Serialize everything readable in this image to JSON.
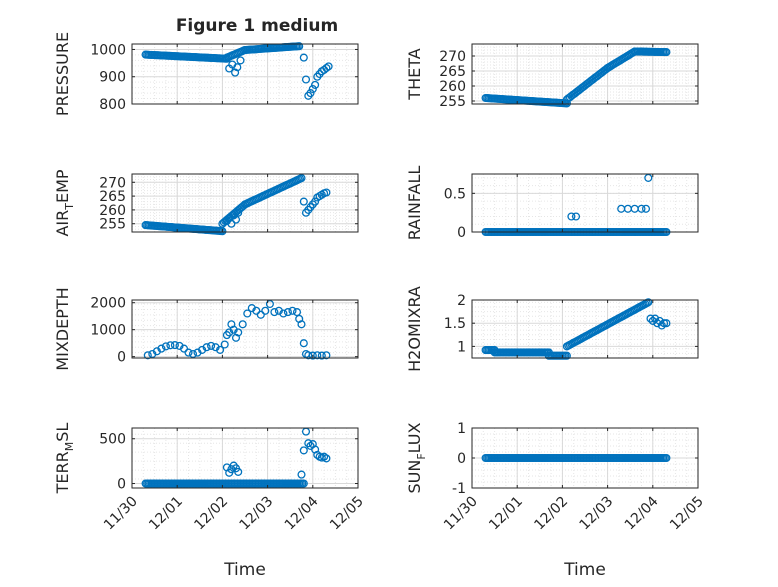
{
  "chart_data": [
    {
      "type": "scatter",
      "panel": 1,
      "column": "left",
      "title": "Figure 1 medium",
      "ylabel": "PRESSURE",
      "xlabel": "",
      "ylim": [
        800,
        1020
      ],
      "yticks": [
        800,
        900,
        1000
      ],
      "xlim": [
        "11/30",
        "12/05"
      ],
      "grid": true,
      "minor_grid": true,
      "segments": [
        {
          "x_start": 0.3,
          "x_end": 2.1,
          "y_start": 981,
          "y_end": 966
        },
        {
          "x_start": 2.1,
          "x_end": 2.5,
          "y_start": 970,
          "y_end": 998
        },
        {
          "x_start": 2.5,
          "x_end": 3.7,
          "y_start": 998,
          "y_end": 1012
        }
      ],
      "points": [
        {
          "x": 2.15,
          "y": 930
        },
        {
          "x": 2.22,
          "y": 945
        },
        {
          "x": 2.28,
          "y": 915
        },
        {
          "x": 2.33,
          "y": 935
        },
        {
          "x": 2.4,
          "y": 960
        },
        {
          "x": 3.8,
          "y": 970
        },
        {
          "x": 3.85,
          "y": 890
        },
        {
          "x": 3.9,
          "y": 830
        },
        {
          "x": 3.95,
          "y": 840
        },
        {
          "x": 4.0,
          "y": 855
        },
        {
          "x": 4.05,
          "y": 870
        },
        {
          "x": 4.1,
          "y": 900
        },
        {
          "x": 4.15,
          "y": 910
        },
        {
          "x": 4.2,
          "y": 920
        },
        {
          "x": 4.25,
          "y": 925
        },
        {
          "x": 4.3,
          "y": 932
        },
        {
          "x": 4.35,
          "y": 938
        }
      ]
    },
    {
      "type": "scatter",
      "panel": 2,
      "column": "right",
      "ylabel": "THETA",
      "xlabel": "",
      "ylim": [
        254,
        274
      ],
      "yticks": [
        255,
        260,
        265,
        270
      ],
      "xlim": [
        "11/30",
        "12/05"
      ],
      "grid": true,
      "minor_grid": true,
      "segments": [
        {
          "x_start": 0.3,
          "x_end": 2.1,
          "y_start": 256.0,
          "y_end": 254.2
        },
        {
          "x_start": 2.1,
          "x_end": 3.0,
          "y_start": 255.5,
          "y_end": 266
        },
        {
          "x_start": 3.0,
          "x_end": 3.6,
          "y_start": 266,
          "y_end": 271.5
        },
        {
          "x_start": 3.6,
          "x_end": 4.3,
          "y_start": 271.5,
          "y_end": 271.3
        }
      ],
      "points": []
    },
    {
      "type": "scatter",
      "panel": 3,
      "column": "left",
      "ylabel": "AIR_TEMP",
      "xlabel": "",
      "ylim": [
        252,
        273
      ],
      "yticks": [
        255,
        260,
        265,
        270
      ],
      "xlim": [
        "11/30",
        "12/05"
      ],
      "grid": true,
      "minor_grid": true,
      "segments": [
        {
          "x_start": 0.3,
          "x_end": 2.0,
          "y_start": 254.5,
          "y_end": 252.3
        },
        {
          "x_start": 2.0,
          "x_end": 2.5,
          "y_start": 255,
          "y_end": 262
        },
        {
          "x_start": 2.5,
          "x_end": 3.75,
          "y_start": 262,
          "y_end": 271.5
        }
      ],
      "points": [
        {
          "x": 2.1,
          "y": 256
        },
        {
          "x": 2.15,
          "y": 257
        },
        {
          "x": 2.2,
          "y": 255
        },
        {
          "x": 2.25,
          "y": 258
        },
        {
          "x": 2.3,
          "y": 256.5
        },
        {
          "x": 2.35,
          "y": 259
        },
        {
          "x": 3.8,
          "y": 263
        },
        {
          "x": 3.85,
          "y": 259
        },
        {
          "x": 3.9,
          "y": 260
        },
        {
          "x": 3.95,
          "y": 261
        },
        {
          "x": 4.0,
          "y": 262
        },
        {
          "x": 4.05,
          "y": 263
        },
        {
          "x": 4.1,
          "y": 264.5
        },
        {
          "x": 4.15,
          "y": 265
        },
        {
          "x": 4.2,
          "y": 265.5
        },
        {
          "x": 4.25,
          "y": 266
        },
        {
          "x": 4.3,
          "y": 266.3
        }
      ]
    },
    {
      "type": "scatter",
      "panel": 4,
      "column": "right",
      "ylabel": "RAINFALL",
      "xlabel": "",
      "ylim": [
        0,
        0.75
      ],
      "yticks": [
        0,
        0.5
      ],
      "xlim": [
        "11/30",
        "12/05"
      ],
      "grid": true,
      "minor_grid": true,
      "segments": [
        {
          "x_start": 0.3,
          "x_end": 4.3,
          "y_start": 0,
          "y_end": 0
        }
      ],
      "points": [
        {
          "x": 2.2,
          "y": 0.2
        },
        {
          "x": 2.3,
          "y": 0.2
        },
        {
          "x": 3.3,
          "y": 0.3
        },
        {
          "x": 3.45,
          "y": 0.3
        },
        {
          "x": 3.6,
          "y": 0.3
        },
        {
          "x": 3.75,
          "y": 0.3
        },
        {
          "x": 3.85,
          "y": 0.3
        },
        {
          "x": 3.9,
          "y": 0.7
        }
      ]
    },
    {
      "type": "scatter",
      "panel": 5,
      "column": "left",
      "ylabel": "MIXDEPTH",
      "xlabel": "",
      "ylim": [
        -50,
        2100
      ],
      "yticks": [
        0,
        1000,
        2000
      ],
      "xlim": [
        "11/30",
        "12/05"
      ],
      "grid": true,
      "minor_grid": true,
      "segments": [],
      "points": [
        {
          "x": 0.35,
          "y": 50
        },
        {
          "x": 0.45,
          "y": 100
        },
        {
          "x": 0.55,
          "y": 200
        },
        {
          "x": 0.65,
          "y": 300
        },
        {
          "x": 0.75,
          "y": 380
        },
        {
          "x": 0.85,
          "y": 420
        },
        {
          "x": 0.95,
          "y": 430
        },
        {
          "x": 1.05,
          "y": 400
        },
        {
          "x": 1.15,
          "y": 300
        },
        {
          "x": 1.25,
          "y": 150
        },
        {
          "x": 1.35,
          "y": 100
        },
        {
          "x": 1.45,
          "y": 150
        },
        {
          "x": 1.55,
          "y": 250
        },
        {
          "x": 1.65,
          "y": 350
        },
        {
          "x": 1.75,
          "y": 400
        },
        {
          "x": 1.85,
          "y": 350
        },
        {
          "x": 1.95,
          "y": 250
        },
        {
          "x": 2.05,
          "y": 450
        },
        {
          "x": 2.1,
          "y": 800
        },
        {
          "x": 2.15,
          "y": 900
        },
        {
          "x": 2.2,
          "y": 1200
        },
        {
          "x": 2.25,
          "y": 1000
        },
        {
          "x": 2.3,
          "y": 700
        },
        {
          "x": 2.35,
          "y": 900
        },
        {
          "x": 2.45,
          "y": 1200
        },
        {
          "x": 2.55,
          "y": 1600
        },
        {
          "x": 2.65,
          "y": 1800
        },
        {
          "x": 2.75,
          "y": 1700
        },
        {
          "x": 2.85,
          "y": 1550
        },
        {
          "x": 2.95,
          "y": 1700
        },
        {
          "x": 3.05,
          "y": 1950
        },
        {
          "x": 3.15,
          "y": 1650
        },
        {
          "x": 3.25,
          "y": 1700
        },
        {
          "x": 3.35,
          "y": 1600
        },
        {
          "x": 3.45,
          "y": 1650
        },
        {
          "x": 3.55,
          "y": 1700
        },
        {
          "x": 3.65,
          "y": 1650
        },
        {
          "x": 3.7,
          "y": 1400
        },
        {
          "x": 3.75,
          "y": 1200
        },
        {
          "x": 3.8,
          "y": 500
        },
        {
          "x": 3.85,
          "y": 100
        },
        {
          "x": 3.9,
          "y": 50
        },
        {
          "x": 4.0,
          "y": 40
        },
        {
          "x": 4.1,
          "y": 50
        },
        {
          "x": 4.2,
          "y": 40
        },
        {
          "x": 4.3,
          "y": 50
        }
      ]
    },
    {
      "type": "scatter",
      "panel": 6,
      "column": "right",
      "ylabel": "H2OMIXRA",
      "xlabel": "",
      "ylim": [
        0.75,
        2.0
      ],
      "yticks": [
        1,
        1.5,
        2
      ],
      "xlim": [
        "11/30",
        "12/05"
      ],
      "grid": true,
      "minor_grid": true,
      "segments": [
        {
          "x_start": 0.3,
          "x_end": 0.5,
          "y_start": 0.92,
          "y_end": 0.92
        },
        {
          "x_start": 0.5,
          "x_end": 1.7,
          "y_start": 0.87,
          "y_end": 0.87
        },
        {
          "x_start": 1.7,
          "x_end": 2.1,
          "y_start": 0.8,
          "y_end": 0.8
        },
        {
          "x_start": 2.1,
          "x_end": 3.9,
          "y_start": 1.0,
          "y_end": 1.95
        }
      ],
      "points": [
        {
          "x": 3.95,
          "y": 1.6
        },
        {
          "x": 4.0,
          "y": 1.55
        },
        {
          "x": 4.05,
          "y": 1.6
        },
        {
          "x": 4.1,
          "y": 1.5
        },
        {
          "x": 4.15,
          "y": 1.55
        },
        {
          "x": 4.2,
          "y": 1.45
        },
        {
          "x": 4.25,
          "y": 1.5
        },
        {
          "x": 4.3,
          "y": 1.5
        }
      ]
    },
    {
      "type": "scatter",
      "panel": 7,
      "column": "left",
      "ylabel": "TERR_MSL",
      "xlabel": "Time",
      "ylim": [
        -50,
        620
      ],
      "yticks": [
        0,
        500
      ],
      "xlim": [
        "11/30",
        "12/05"
      ],
      "xticks": [
        "11/30",
        "12/01",
        "12/02",
        "12/03",
        "12/04",
        "12/05"
      ],
      "grid": true,
      "minor_grid": true,
      "segments": [
        {
          "x_start": 0.3,
          "x_end": 3.8,
          "y_start": 0,
          "y_end": 0
        }
      ],
      "points": [
        {
          "x": 2.1,
          "y": 180
        },
        {
          "x": 2.15,
          "y": 120
        },
        {
          "x": 2.2,
          "y": 160
        },
        {
          "x": 2.25,
          "y": 200
        },
        {
          "x": 2.3,
          "y": 170
        },
        {
          "x": 2.35,
          "y": 130
        },
        {
          "x": 3.75,
          "y": 100
        },
        {
          "x": 3.8,
          "y": 370
        },
        {
          "x": 3.85,
          "y": 580
        },
        {
          "x": 3.9,
          "y": 450
        },
        {
          "x": 3.95,
          "y": 420
        },
        {
          "x": 4.0,
          "y": 440
        },
        {
          "x": 4.05,
          "y": 380
        },
        {
          "x": 4.1,
          "y": 320
        },
        {
          "x": 4.15,
          "y": 300
        },
        {
          "x": 4.2,
          "y": 290
        },
        {
          "x": 4.25,
          "y": 300
        },
        {
          "x": 4.3,
          "y": 280
        }
      ]
    },
    {
      "type": "scatter",
      "panel": 8,
      "column": "right",
      "ylabel": "SUN_FLUX",
      "xlabel": "Time",
      "ylim": [
        -1,
        1
      ],
      "yticks": [
        -1,
        0,
        1
      ],
      "xlim": [
        "11/30",
        "12/05"
      ],
      "xticks": [
        "11/30",
        "12/01",
        "12/02",
        "12/03",
        "12/04",
        "12/05"
      ],
      "grid": true,
      "minor_grid": true,
      "segments": [
        {
          "x_start": 0.3,
          "x_end": 4.3,
          "y_start": 0,
          "y_end": 0
        }
      ],
      "points": []
    }
  ],
  "panel_text": {
    "title": "Figure 1 medium",
    "ylabels": [
      {
        "main": "PRESSURE",
        "sub": ""
      },
      {
        "main": "THETA",
        "sub": ""
      },
      {
        "main": "AIR",
        "sub": "T",
        "tail": "EMP"
      },
      {
        "main": "RAINFALL",
        "sub": ""
      },
      {
        "main": "MIXDEPTH",
        "sub": ""
      },
      {
        "main": "H2OMIXRA",
        "sub": ""
      },
      {
        "main": "TERR",
        "sub": "M",
        "tail": "SL"
      },
      {
        "main": "SUN",
        "sub": "F",
        "tail": "LUX"
      }
    ],
    "xlabel": "Time",
    "xticks": [
      "11/30",
      "12/01",
      "12/02",
      "12/03",
      "12/04",
      "12/05"
    ]
  }
}
